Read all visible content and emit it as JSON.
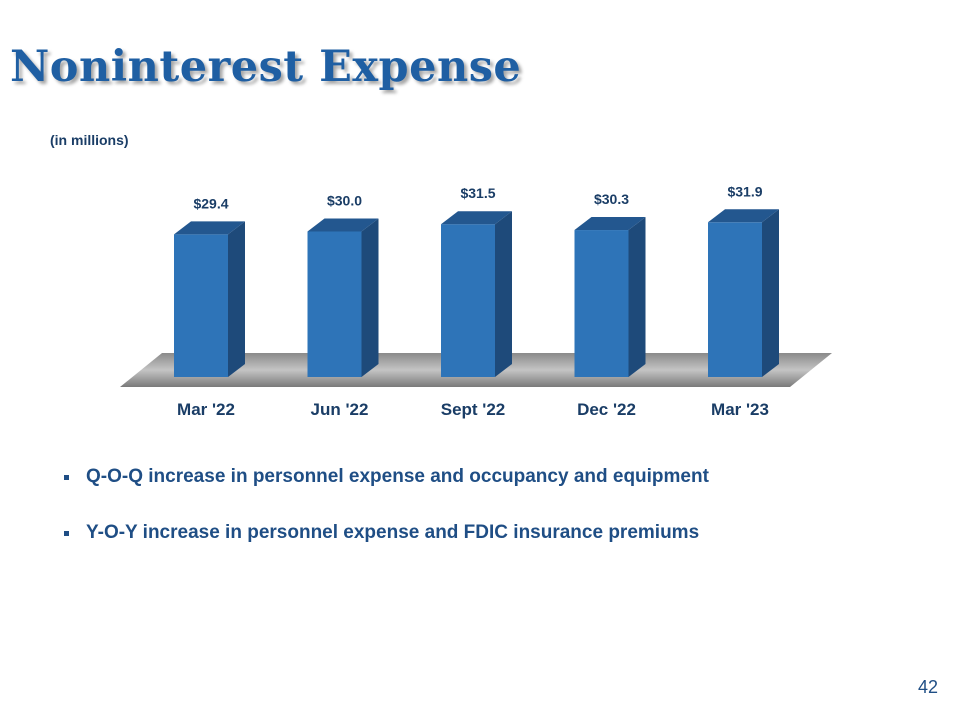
{
  "slide": {
    "title": "Noninterest Expense",
    "unit_note": "(in millions)",
    "page_number": "42"
  },
  "bullets": [
    "Q-O-Q increase in personnel expense and occupancy and equipment",
    "Y-O-Y increase in personnel expense and FDIC insurance premiums"
  ],
  "colors": {
    "title": "#1f5fa3",
    "bar_front": "#2e74b8",
    "bar_side": "#1e4a7a",
    "bar_top": "#23578f",
    "text": "#1a3d66"
  },
  "chart_data": {
    "type": "bar",
    "categories": [
      "Mar '22",
      "Jun '22",
      "Sept '22",
      "Dec '22",
      "Mar '23"
    ],
    "values": [
      29.4,
      30.0,
      31.5,
      30.3,
      31.9
    ],
    "data_labels": [
      "$29.4",
      "$30.0",
      "$31.5",
      "$30.3",
      "$31.9"
    ],
    "title": "",
    "xlabel": "",
    "ylabel": "",
    "unit": "(in millions)",
    "style": "3d",
    "grid": false,
    "legend": "none"
  }
}
